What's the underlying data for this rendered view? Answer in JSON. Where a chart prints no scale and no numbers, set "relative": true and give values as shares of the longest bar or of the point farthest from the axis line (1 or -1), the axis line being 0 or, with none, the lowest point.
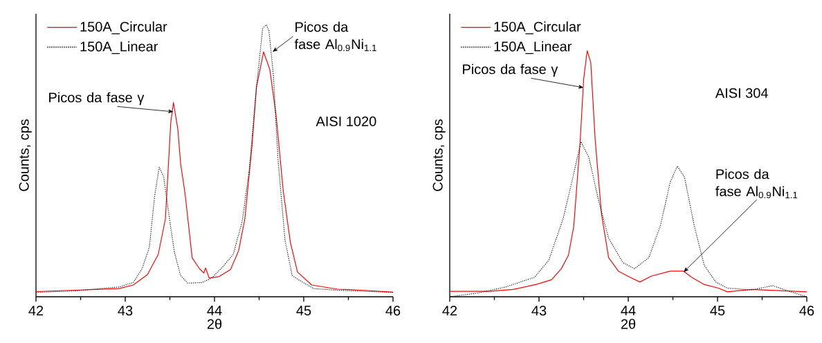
{
  "chart_data": [
    {
      "type": "line",
      "relative": true,
      "xlabel": "2θ",
      "ylabel": "Counts, cps",
      "xlim": [
        42,
        46
      ],
      "xticks": [
        42,
        43,
        44,
        45,
        46
      ],
      "tick_labels": "x",
      "legend": "top left",
      "marker": "none",
      "series": [
        {
          "name": "150A_Circular",
          "color": "#ff0000",
          "line_style": "solid",
          "x": [
            42.0,
            42.45,
            42.93,
            43.09,
            43.25,
            43.37,
            43.45,
            43.51,
            43.54,
            43.59,
            43.62,
            43.67,
            43.75,
            43.83,
            43.88,
            43.9,
            43.94,
            44.05,
            44.18,
            44.27,
            44.34,
            44.42,
            44.47,
            44.55,
            44.62,
            44.69,
            44.77,
            44.85,
            44.93,
            45.09,
            45.38,
            45.65,
            46.0
          ],
          "values": [
            0.019,
            0.024,
            0.03,
            0.043,
            0.082,
            0.156,
            0.286,
            0.64,
            0.714,
            0.615,
            0.49,
            0.38,
            0.143,
            0.104,
            0.087,
            0.106,
            0.069,
            0.074,
            0.1,
            0.169,
            0.286,
            0.554,
            0.77,
            0.9,
            0.835,
            0.667,
            0.39,
            0.2,
            0.091,
            0.043,
            0.028,
            0.024,
            0.017
          ]
        },
        {
          "name": "150A_Linear",
          "color": "#000000",
          "line_style": "dotted",
          "x": [
            42.0,
            42.45,
            42.93,
            43.09,
            43.19,
            43.27,
            43.33,
            43.38,
            43.43,
            43.5,
            43.55,
            43.62,
            43.7,
            43.86,
            43.97,
            44.1,
            44.21,
            44.31,
            44.39,
            44.47,
            44.54,
            44.58,
            44.61,
            44.66,
            44.71,
            44.79,
            44.87,
            44.95,
            45.11,
            45.38,
            46.0
          ],
          "values": [
            0.016,
            0.022,
            0.036,
            0.052,
            0.104,
            0.182,
            0.372,
            0.476,
            0.442,
            0.277,
            0.165,
            0.078,
            0.05,
            0.052,
            0.069,
            0.113,
            0.156,
            0.277,
            0.468,
            0.77,
            0.987,
            1.0,
            0.978,
            0.814,
            0.511,
            0.208,
            0.078,
            0.061,
            0.03,
            0.024,
            0.016
          ]
        }
      ],
      "annotations": [
        "AISI 1020",
        {
          "text": "Picos da fase γ",
          "x": 43.54,
          "y": 0.68
        },
        {
          "text": "Picos da fase Al$_{0.9}$Ni$_{1.1}$",
          "x": 44.65,
          "y": 0.9
        }
      ]
    },
    {
      "type": "line",
      "relative": true,
      "xlabel": "2θ",
      "ylabel": "Counts, cps",
      "xlim": [
        42,
        46
      ],
      "xticks": [
        42,
        43,
        44,
        45,
        46
      ],
      "tick_labels": "x",
      "legend": "top left",
      "marker": "none",
      "series": [
        {
          "name": "150A_Circular",
          "color": "#ff0000",
          "line_style": "solid",
          "x": [
            42.0,
            42.45,
            42.71,
            42.97,
            43.14,
            43.25,
            43.33,
            43.39,
            43.46,
            43.5,
            43.54,
            43.58,
            43.63,
            43.7,
            43.78,
            43.89,
            44.02,
            44.13,
            44.26,
            44.47,
            44.62,
            44.71,
            44.85,
            45.01,
            45.11,
            45.38,
            46.0
          ],
          "values": [
            0.022,
            0.022,
            0.03,
            0.05,
            0.069,
            0.114,
            0.169,
            0.288,
            0.625,
            0.883,
            1.0,
            0.952,
            0.635,
            0.337,
            0.159,
            0.104,
            0.079,
            0.06,
            0.084,
            0.104,
            0.104,
            0.079,
            0.05,
            0.035,
            0.02,
            0.03,
            0.02
          ]
        },
        {
          "name": "150A_Linear",
          "color": "#000000",
          "line_style": "dotted",
          "x": [
            42.0,
            42.31,
            42.63,
            42.79,
            42.95,
            43.11,
            43.27,
            43.38,
            43.47,
            43.56,
            43.67,
            43.78,
            43.94,
            44.07,
            44.23,
            44.36,
            44.47,
            44.55,
            44.63,
            44.74,
            44.85,
            44.98,
            45.11,
            45.38,
            45.62,
            45.78,
            46.0
          ],
          "values": [
            0.0,
            0.015,
            0.04,
            0.06,
            0.079,
            0.149,
            0.317,
            0.486,
            0.63,
            0.565,
            0.387,
            0.238,
            0.139,
            0.114,
            0.159,
            0.288,
            0.466,
            0.531,
            0.486,
            0.288,
            0.129,
            0.06,
            0.035,
            0.028,
            0.045,
            0.025,
            0.0
          ]
        }
      ],
      "annotations": [
        "AISI 304",
        {
          "text": "Picos da fase γ",
          "x": 43.5,
          "y": 0.85
        },
        {
          "text": "Picos da fase Al$_{0.9}$Ni$_{1.1}$",
          "x": 44.62,
          "y": 0.1
        }
      ]
    }
  ]
}
